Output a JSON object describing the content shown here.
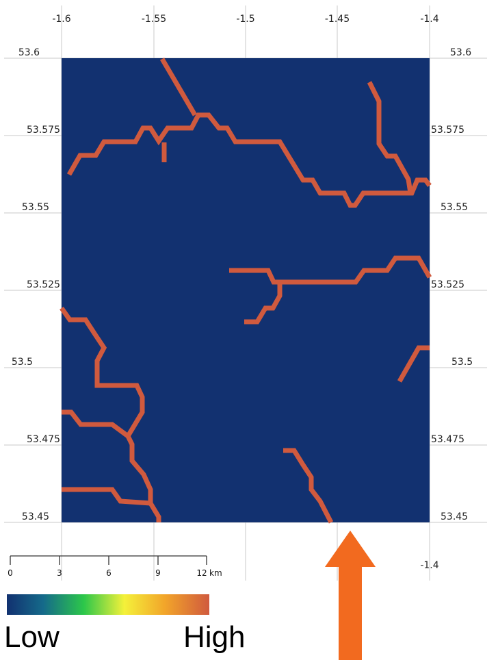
{
  "map": {
    "background_color": "#123170",
    "stream_color": "#d05a3e",
    "grid_color": "#c8c8c8",
    "x_ticks": [
      "-1.6",
      "-1.55",
      "-1.5",
      "-1.45",
      "-1.4"
    ],
    "y_ticks": [
      "53.6",
      "53.575",
      "53.55",
      "53.525",
      "53.5",
      "53.475",
      "53.45"
    ],
    "bottom_x_tick": "-1.4"
  },
  "scale_bar": {
    "labels": [
      "0",
      "3",
      "6",
      "9",
      "12"
    ],
    "unit": "km"
  },
  "color_legend": {
    "low_label": "Low",
    "high_label": "High",
    "gradient_colors": [
      "#123170",
      "#1b8a8a",
      "#2cc74a",
      "#f4f13a",
      "#f2a52a",
      "#d05a3e"
    ]
  },
  "arrow": {
    "color": "#f26a1f"
  }
}
